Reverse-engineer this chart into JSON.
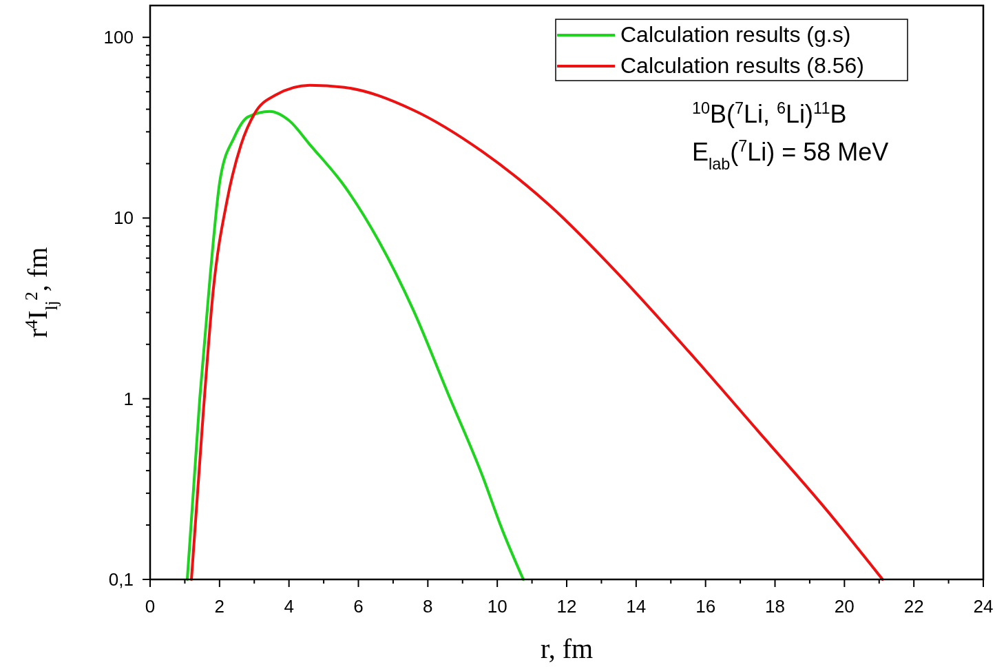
{
  "chart_data": {
    "type": "line",
    "xlabel": "r, fm",
    "ylabel": "r$^{4}$I$_{lj}$$^{2}$, fm",
    "log": "y",
    "grid": false,
    "legend": "top right",
    "line_style": "solid",
    "xlim": [
      0,
      24
    ],
    "ylim": [
      0.1,
      150
    ],
    "xticks": [
      0,
      {
        "value": 1,
        "label": null
      },
      2,
      {
        "value": 3,
        "label": null
      },
      4,
      {
        "value": 5,
        "label": null
      },
      6,
      {
        "value": 7,
        "label": null
      },
      8,
      {
        "value": 9,
        "label": null
      },
      10,
      {
        "value": 11,
        "label": null
      },
      12,
      {
        "value": 13,
        "label": null
      },
      14,
      {
        "value": 15,
        "label": null
      },
      16,
      {
        "value": 17,
        "label": null
      },
      18,
      {
        "value": 19,
        "label": null
      },
      20,
      {
        "value": 21,
        "label": null
      },
      22,
      {
        "value": 23,
        "label": null
      },
      24
    ],
    "yticks": [
      {
        "value": 0.1,
        "label": "0,1"
      },
      {
        "value": 0.2,
        "label": null
      },
      {
        "value": 0.3,
        "label": null
      },
      {
        "value": 0.4,
        "label": null
      },
      {
        "value": 0.5,
        "label": null
      },
      {
        "value": 0.6,
        "label": null
      },
      {
        "value": 0.7,
        "label": null
      },
      {
        "value": 0.8,
        "label": null
      },
      {
        "value": 0.9,
        "label": null
      },
      1,
      {
        "value": 2,
        "label": null
      },
      {
        "value": 3,
        "label": null
      },
      {
        "value": 4,
        "label": null
      },
      {
        "value": 5,
        "label": null
      },
      {
        "value": 6,
        "label": null
      },
      {
        "value": 7,
        "label": null
      },
      {
        "value": 8,
        "label": null
      },
      {
        "value": 9,
        "label": null
      },
      10,
      {
        "value": 20,
        "label": null
      },
      {
        "value": 30,
        "label": null
      },
      {
        "value": 40,
        "label": null
      },
      {
        "value": 50,
        "label": null
      },
      {
        "value": 60,
        "label": null
      },
      {
        "value": 70,
        "label": null
      },
      {
        "value": 80,
        "label": null
      },
      {
        "value": 90,
        "label": null
      },
      100
    ],
    "annotations": [
      "$^{10}$B($^{7}$Li, $^{6}$Li)$^{11}$B",
      "E$_{lab}$($^{7}$Li) = 58 MeV"
    ],
    "series": [
      {
        "name": "Calculation results (g.s)",
        "color": "#1ed41e",
        "x": [
          1.07,
          1.43,
          1.73,
          2.02,
          2.42,
          2.82,
          3.45,
          4.0,
          4.6,
          5.59,
          6.58,
          7.58,
          8.57,
          9.56,
          10.15,
          10.75
        ],
        "values": [
          0.1,
          1.0,
          4.8,
          16.5,
          27.9,
          36.3,
          38.9,
          34.7,
          25.5,
          15.1,
          7.5,
          3.1,
          1.08,
          0.38,
          0.187,
          0.1
        ]
      },
      {
        "name": "Calculation results (8.56)",
        "color": "#ee1111",
        "x": [
          1.19,
          1.53,
          1.82,
          2.22,
          2.62,
          3.01,
          3.61,
          4.6,
          5.59,
          7.58,
          9.56,
          11.54,
          13.53,
          15.51,
          17.49,
          19.48,
          21.1
        ],
        "values": [
          0.1,
          0.83,
          4.0,
          12.6,
          25.5,
          37.9,
          47.9,
          54.3,
          52.9,
          39.6,
          23.4,
          11.6,
          4.8,
          1.83,
          0.67,
          0.243,
          0.1
        ]
      }
    ]
  }
}
